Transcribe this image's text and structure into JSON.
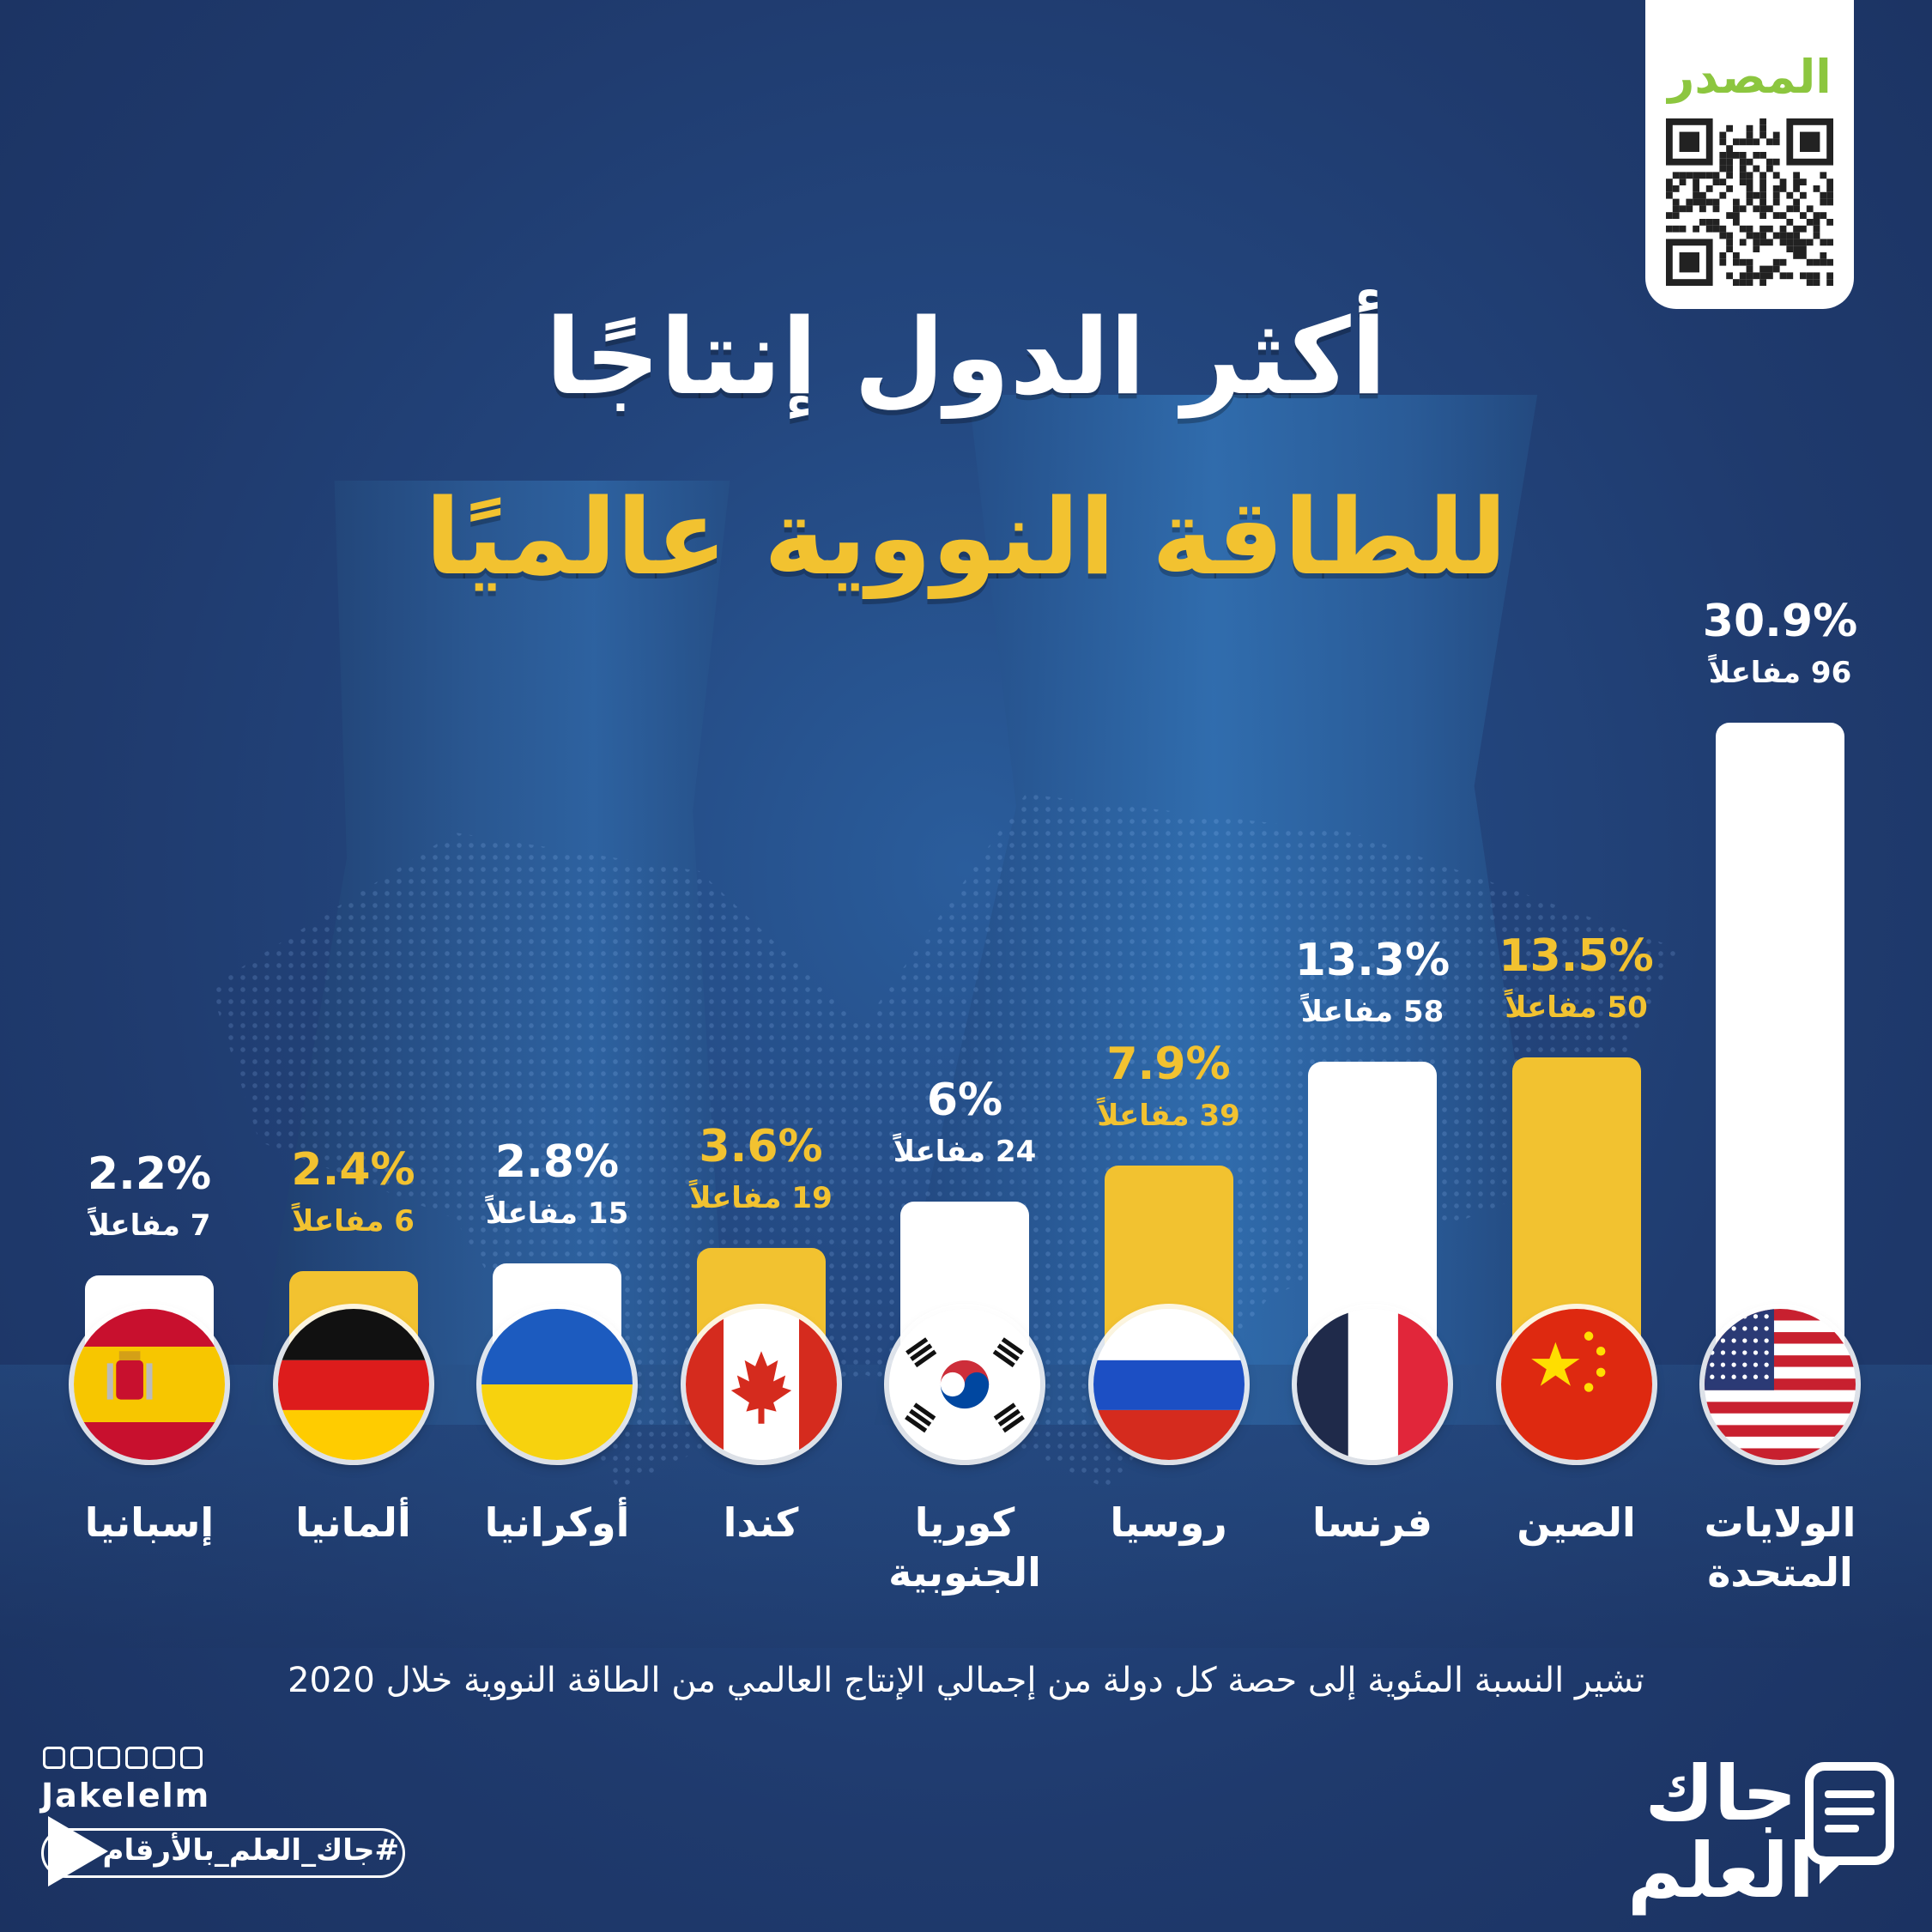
{
  "title": {
    "line1": "أكثر الدول إنتاجًا",
    "line2": "للطاقة النووية عالميًا"
  },
  "source": {
    "label": "المصدر"
  },
  "footnote": "تشير النسبة المئوية إلى حصة كل دولة من إجمالي الإنتاج العالمي من الطاقة النووية خلال 2020",
  "brand": {
    "handle": "Jakelelm",
    "hashtag": "#جاك_العلم_بالأرقام",
    "logo_line1": "جاك",
    "logo_line2": "العلم"
  },
  "colors": {
    "white": "#ffffff",
    "yellow": "#f2c230",
    "source_green": "#8cc63f"
  },
  "chart_data": {
    "type": "bar",
    "title": "أكثر الدول إنتاجًا للطاقة النووية عالميًا",
    "categories": [
      "الولايات المتحدة",
      "الصين",
      "فرنسا",
      "روسيا",
      "كوريا الجنوبية",
      "كندا",
      "أوكرانيا",
      "ألمانيا",
      "إسبانيا"
    ],
    "series": [
      {
        "values": [
          30.9,
          13.5,
          13.3,
          7.9,
          6,
          3.6,
          2.8,
          2.4,
          2.2
        ]
      }
    ],
    "ylim": [
      0,
      30.9
    ],
    "grid": false,
    "bars": [
      {
        "country": "الولايات المتحدة",
        "name_lines": [
          "الولايات",
          "المتحدة"
        ],
        "value": 30.9,
        "pct_label": "30.9%",
        "reactors_label": "96 مفاعلاً",
        "color": "white",
        "flag": "us-flag-icon"
      },
      {
        "country": "الصين",
        "name_lines": [
          "الصين"
        ],
        "value": 13.5,
        "pct_label": "13.5%",
        "reactors_label": "50 مفاعلاً",
        "color": "yellow",
        "flag": "china-flag-icon"
      },
      {
        "country": "فرنسا",
        "name_lines": [
          "فرنسا"
        ],
        "value": 13.3,
        "pct_label": "13.3%",
        "reactors_label": "58 مفاعلاً",
        "color": "white",
        "flag": "france-flag-icon"
      },
      {
        "country": "روسيا",
        "name_lines": [
          "روسيا"
        ],
        "value": 7.9,
        "pct_label": "7.9%",
        "reactors_label": "39 مفاعلاً",
        "color": "yellow",
        "flag": "russia-flag-icon"
      },
      {
        "country": "كوريا الجنوبية",
        "name_lines": [
          "كوريا",
          "الجنوبية"
        ],
        "value": 6,
        "pct_label": "6%",
        "reactors_label": "24 مفاعلاً",
        "color": "white",
        "flag": "south-korea-flag-icon"
      },
      {
        "country": "كندا",
        "name_lines": [
          "كندا"
        ],
        "value": 3.6,
        "pct_label": "3.6%",
        "reactors_label": "19 مفاعلاً",
        "color": "yellow",
        "flag": "canada-flag-icon"
      },
      {
        "country": "أوكرانيا",
        "name_lines": [
          "أوكرانيا"
        ],
        "value": 2.8,
        "pct_label": "2.8%",
        "reactors_label": "15 مفاعلاً",
        "color": "white",
        "flag": "ukraine-flag-icon"
      },
      {
        "country": "ألمانيا",
        "name_lines": [
          "ألمانيا"
        ],
        "value": 2.4,
        "pct_label": "2.4%",
        "reactors_label": "6 مفاعلاً",
        "color": "yellow",
        "flag": "germany-flag-icon"
      },
      {
        "country": "إسبانيا",
        "name_lines": [
          "إسبانيا"
        ],
        "value": 2.2,
        "pct_label": "2.2%",
        "reactors_label": "7 مفاعلاً",
        "color": "white",
        "flag": "spain-flag-icon"
      }
    ]
  }
}
